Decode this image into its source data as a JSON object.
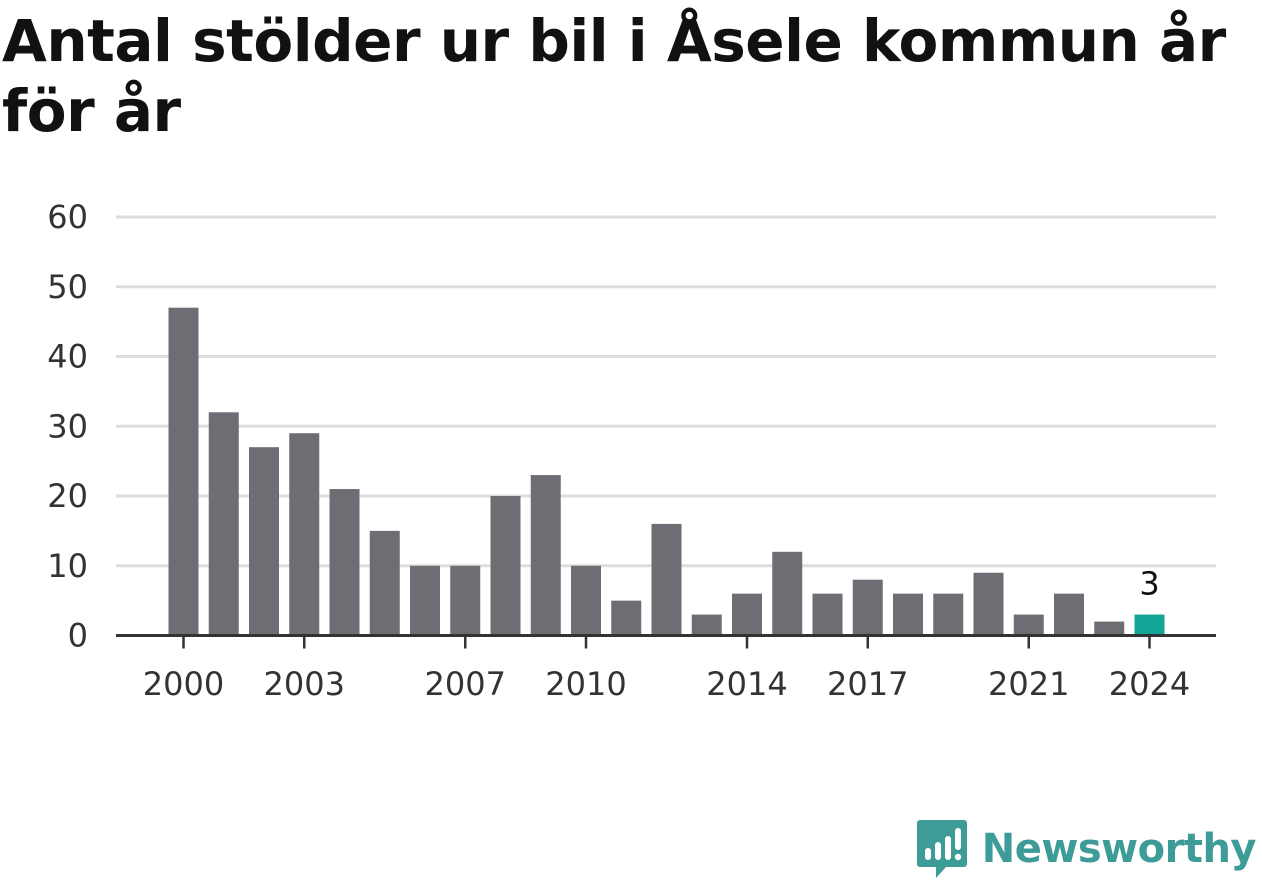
{
  "title": "Antal stölder ur bil i Åsele kommun år för år",
  "brand": {
    "name": "Newsworthy",
    "icon": "newsworthy-logo-icon",
    "color": "#3d9c97"
  },
  "colors": {
    "bar": "#6e6d73",
    "highlight": "#11a497",
    "grid": "#dddddd",
    "axis": "#333333"
  },
  "chart_data": {
    "type": "bar",
    "categories": [
      "2000",
      "2001",
      "2002",
      "2003",
      "2004",
      "2005",
      "2006",
      "2007",
      "2008",
      "2009",
      "2010",
      "2011",
      "2012",
      "2013",
      "2014",
      "2015",
      "2016",
      "2017",
      "2018",
      "2019",
      "2020",
      "2021",
      "2022",
      "2023",
      "2024"
    ],
    "values": [
      47,
      32,
      27,
      29,
      21,
      15,
      10,
      10,
      20,
      23,
      10,
      5,
      16,
      3,
      6,
      12,
      6,
      8,
      6,
      6,
      9,
      3,
      6,
      2,
      3
    ],
    "x_tick_labels": [
      "2000",
      "2003",
      "2007",
      "2010",
      "2014",
      "2017",
      "2021",
      "2024"
    ],
    "y_ticks": [
      0,
      10,
      20,
      30,
      40,
      50,
      60
    ],
    "ylim": [
      0,
      60
    ],
    "highlight_category": "2024",
    "data_labels": [
      {
        "category": "2024",
        "text": "3"
      }
    ],
    "xlabel": "",
    "ylabel": "",
    "grid": true
  }
}
